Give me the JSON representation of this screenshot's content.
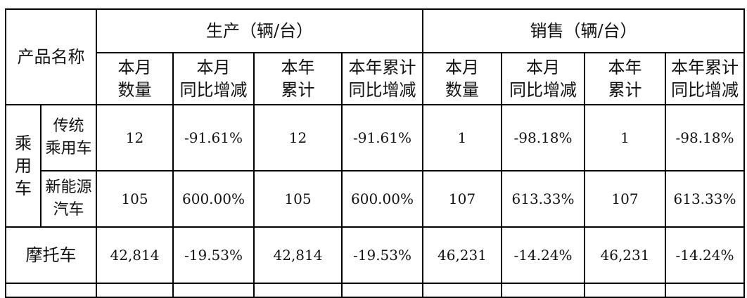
{
  "header": {
    "product_name": "产品名称",
    "production": "生产（辆/台）",
    "sales": "销售（辆/台）",
    "subcolumns": [
      [
        "本月",
        "数量"
      ],
      [
        "本月",
        "同比增减"
      ],
      [
        "本年",
        "累计"
      ],
      [
        "本年累计",
        "同比增减"
      ]
    ]
  },
  "rows": {
    "passenger_car_group": [
      "乘",
      "用",
      "车"
    ],
    "traditional": {
      "label": [
        "传统",
        "乘用车"
      ],
      "values": [
        "12",
        "-91.61%",
        "12",
        "-91.61%",
        "1",
        "-98.18%",
        "1",
        "-98.18%"
      ]
    },
    "new_energy": {
      "label": [
        "新能源",
        "汽车"
      ],
      "values": [
        "105",
        "600.00%",
        "105",
        "600.00%",
        "107",
        "613.33%",
        "107",
        "613.33%"
      ]
    },
    "motorcycle": {
      "label": "摩托车",
      "values": [
        "42,814",
        "-19.53%",
        "42,814",
        "-19.53%",
        "46,231",
        "-14.24%",
        "46,231",
        "-14.24%"
      ]
    }
  }
}
